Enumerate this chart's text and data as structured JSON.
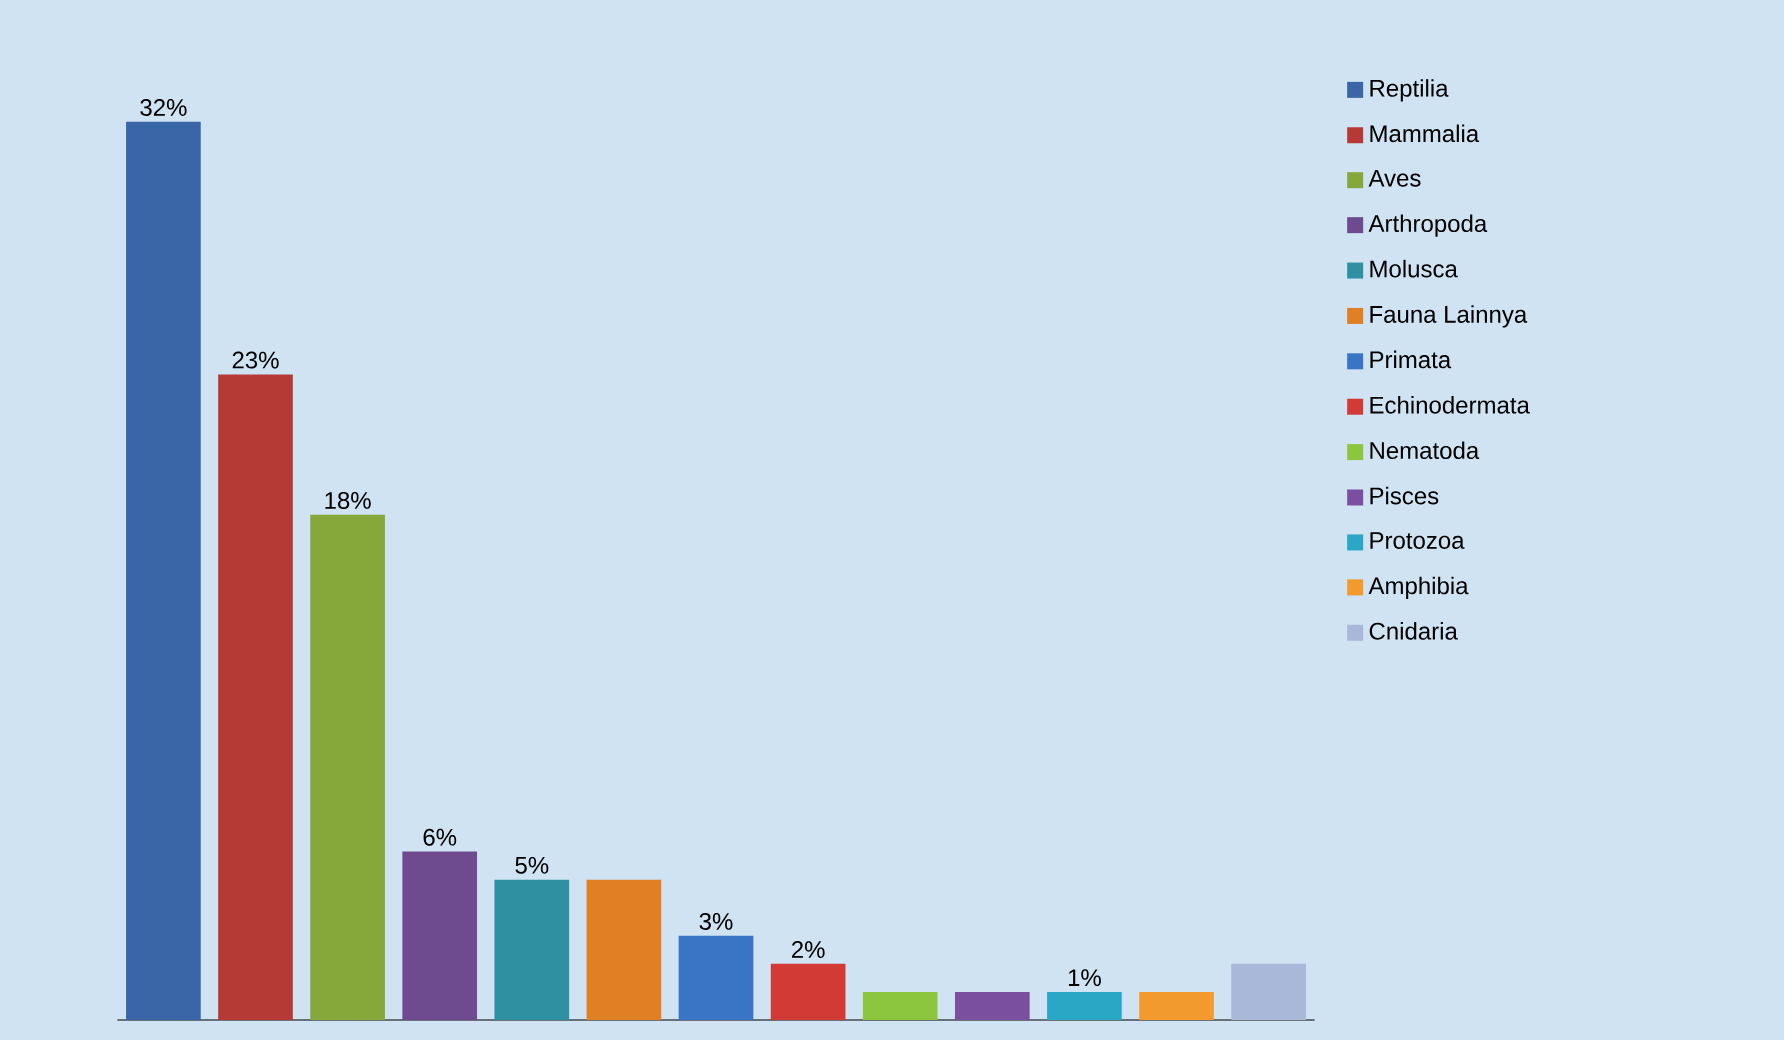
{
  "chart_data": {
    "type": "bar",
    "categories": [
      null,
      null,
      null,
      null,
      null,
      null,
      null,
      null,
      null,
      null,
      null,
      null,
      null
    ],
    "series": [
      {
        "name": "Reptilia",
        "color": "#3a66a8",
        "values": [
          32,
          null,
          null,
          null,
          null,
          null,
          null,
          null,
          null,
          null,
          null,
          null,
          null
        ],
        "value_labels": [
          "32%",
          null,
          null,
          null,
          null,
          null,
          null,
          null,
          null,
          null,
          null,
          null,
          null
        ]
      },
      {
        "name": "Mammalia",
        "color": "#b53a35",
        "values": [
          null,
          23,
          null,
          null,
          null,
          null,
          null,
          null,
          null,
          null,
          null,
          null,
          null
        ],
        "value_labels": [
          null,
          "23%",
          null,
          null,
          null,
          null,
          null,
          null,
          null,
          null,
          null,
          null,
          null
        ]
      },
      {
        "name": "Aves",
        "color": "#86a83a",
        "values": [
          null,
          null,
          18,
          null,
          null,
          null,
          null,
          null,
          null,
          null,
          null,
          null,
          null
        ],
        "value_labels": [
          null,
          null,
          "18%",
          null,
          null,
          null,
          null,
          null,
          null,
          null,
          null,
          null,
          null
        ]
      },
      {
        "name": "Arthropoda",
        "color": "#6e4a8e",
        "values": [
          null,
          null,
          null,
          6,
          null,
          null,
          null,
          null,
          null,
          null,
          null,
          null,
          null
        ],
        "value_labels": [
          null,
          null,
          null,
          "6%",
          null,
          null,
          null,
          null,
          null,
          null,
          null,
          null,
          null
        ]
      },
      {
        "name": "Molusca",
        "color": "#2e90a0",
        "values": [
          null,
          null,
          null,
          null,
          5,
          null,
          null,
          null,
          null,
          null,
          null,
          null,
          null
        ],
        "value_labels": [
          null,
          null,
          null,
          null,
          "5%",
          null,
          null,
          null,
          null,
          null,
          null,
          null,
          null
        ]
      },
      {
        "name": "Fauna Lainnya",
        "color": "#e07f24",
        "values": [
          null,
          null,
          null,
          null,
          null,
          5,
          null,
          null,
          null,
          null,
          null,
          null,
          null
        ]
      },
      {
        "name": "Primata",
        "color": "#3a74c4",
        "values": [
          null,
          null,
          null,
          null,
          null,
          null,
          3,
          null,
          null,
          null,
          null,
          null,
          null
        ],
        "value_labels": [
          null,
          null,
          null,
          null,
          null,
          null,
          "3%",
          null,
          null,
          null,
          null,
          null,
          null
        ]
      },
      {
        "name": "Echinodermata",
        "color": "#d23a36",
        "values": [
          null,
          null,
          null,
          null,
          null,
          null,
          null,
          2,
          null,
          null,
          null,
          null,
          null
        ],
        "value_labels": [
          null,
          null,
          null,
          null,
          null,
          null,
          null,
          "2%",
          null,
          null,
          null,
          null,
          null
        ]
      },
      {
        "name": "Nematoda",
        "color": "#8cc63f",
        "values": [
          null,
          null,
          null,
          null,
          null,
          null,
          null,
          null,
          1,
          null,
          null,
          null,
          null
        ]
      },
      {
        "name": "Pisces",
        "color": "#7a4fa0",
        "values": [
          null,
          null,
          null,
          null,
          null,
          null,
          null,
          null,
          null,
          1,
          null,
          null,
          null
        ]
      },
      {
        "name": "Protozoa",
        "color": "#2aa7c4",
        "values": [
          null,
          null,
          null,
          null,
          null,
          null,
          null,
          null,
          null,
          null,
          1,
          null,
          null
        ],
        "value_labels": [
          null,
          null,
          null,
          null,
          null,
          null,
          null,
          null,
          null,
          null,
          "1%",
          null,
          null
        ]
      },
      {
        "name": "Amphibia",
        "color": "#f39a2e",
        "values": [
          null,
          null,
          null,
          null,
          null,
          null,
          null,
          null,
          null,
          null,
          null,
          1,
          null
        ]
      },
      {
        "name": "Cnidaria",
        "color": "#a9b8d8",
        "values": [
          null,
          null,
          null,
          null,
          null,
          null,
          null,
          null,
          null,
          null,
          null,
          null,
          2
        ]
      }
    ],
    "stacked": true,
    "legend": "right"
  }
}
